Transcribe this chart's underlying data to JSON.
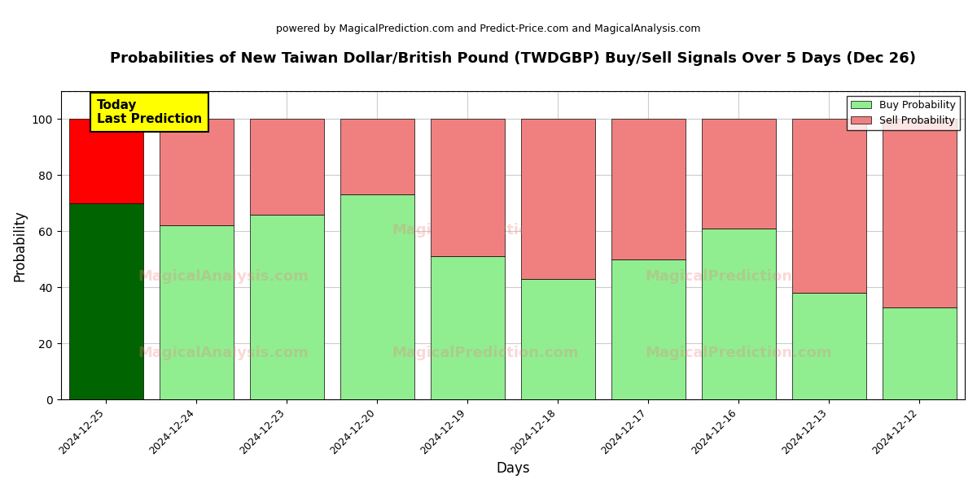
{
  "title": "Probabilities of New Taiwan Dollar/British Pound (TWDGBP) Buy/Sell Signals Over 5 Days (Dec 26)",
  "subtitle": "powered by MagicalPrediction.com and Predict-Price.com and MagicalAnalysis.com",
  "xlabel": "Days",
  "ylabel": "Probability",
  "dates": [
    "2024-12-25",
    "2024-12-24",
    "2024-12-23",
    "2024-12-20",
    "2024-12-19",
    "2024-12-18",
    "2024-12-17",
    "2024-12-16",
    "2024-12-13",
    "2024-12-12"
  ],
  "buy_values": [
    70,
    62,
    66,
    73,
    51,
    43,
    50,
    61,
    38,
    33
  ],
  "sell_values": [
    30,
    38,
    34,
    27,
    49,
    57,
    50,
    39,
    62,
    67
  ],
  "today_bar_index": 0,
  "buy_color_today": "#006400",
  "sell_color_today": "#FF0000",
  "buy_color_normal": "#90EE90",
  "sell_color_normal": "#F08080",
  "today_label": "Today\nLast Prediction",
  "legend_buy": "Buy Probability",
  "legend_sell": "Sell Probability",
  "ylim": [
    0,
    110
  ],
  "yticks": [
    0,
    20,
    40,
    60,
    80,
    100
  ],
  "dashed_line_y": 110,
  "background_color": "#ffffff",
  "grid_color": "#cccccc"
}
